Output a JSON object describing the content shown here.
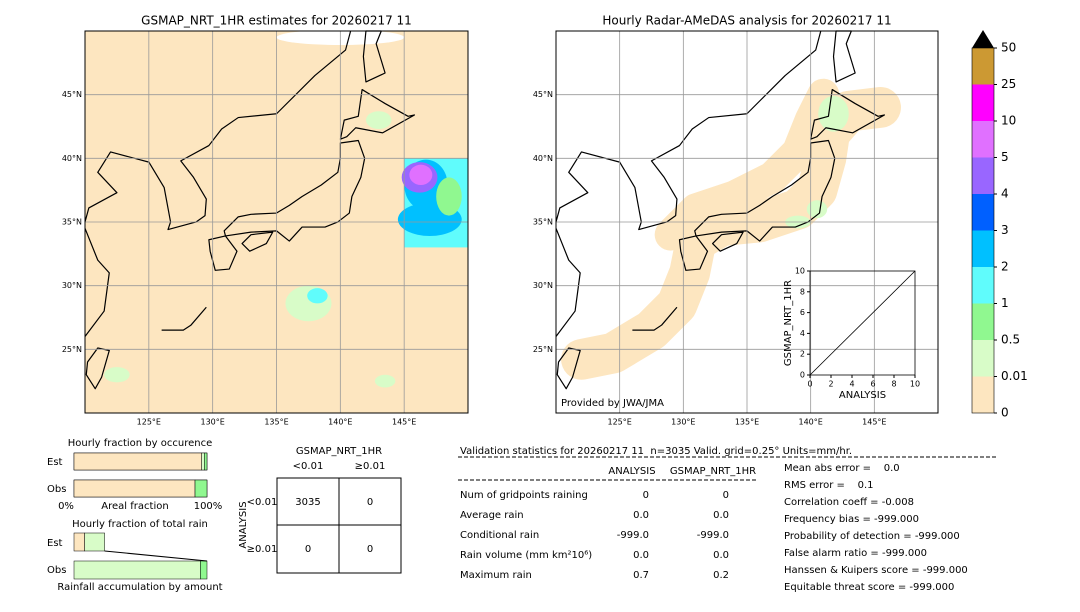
{
  "maps": [
    {
      "title": "GSMAP_NRT_1HR estimates for 20260217 11"
    },
    {
      "title": "Hourly Radar-AMeDAS analysis for 20260217 11",
      "credit": "Provided by JWA/JMA"
    }
  ],
  "map_axes": {
    "xlim": [
      120,
      150
    ],
    "ylim": [
      20,
      50
    ],
    "xticks": [
      {
        "value": 125,
        "label": "125°E"
      },
      {
        "value": 130,
        "label": "130°E"
      },
      {
        "value": 135,
        "label": "135°E"
      },
      {
        "value": 140,
        "label": "140°E"
      },
      {
        "value": 145,
        "label": "145°E"
      }
    ],
    "yticks": [
      {
        "value": 25,
        "label": "25°N"
      },
      {
        "value": 30,
        "label": "30°N"
      },
      {
        "value": 35,
        "label": "35°N"
      },
      {
        "value": 40,
        "label": "40°N"
      },
      {
        "value": 45,
        "label": "45°N"
      }
    ]
  },
  "colorbar": {
    "bounds": [
      0,
      0.01,
      0.5,
      1,
      2,
      3,
      4,
      5,
      10,
      25,
      50
    ],
    "colors": [
      "#fde6c0",
      "#d8fcc8",
      "#90f890",
      "#60fcfc",
      "#00c0ff",
      "#0060ff",
      "#9966ff",
      "#e070ff",
      "#ff00ff",
      "#cc9933"
    ],
    "extend_color": "#000000"
  },
  "scatter": {
    "xlabel": "ANALYSIS",
    "ylabel": "GSMAP_NRT_1HR",
    "xlim": [
      0,
      10
    ],
    "ylim": [
      0,
      10
    ],
    "xticks": [
      0,
      2,
      4,
      6,
      8,
      10
    ],
    "yticks": [
      0,
      2,
      4,
      6,
      8,
      10
    ]
  },
  "occurrence": {
    "title": "Hourly fraction by occurence",
    "rows": [
      "Est",
      "Obs"
    ],
    "xticks": [
      "0%",
      "100%"
    ],
    "xlabel": "Areal fraction",
    "colors": [
      "#fde6c0",
      "#d8fcc8",
      "#90f890"
    ],
    "est": [
      0.96,
      0.02,
      0.02
    ],
    "obs": [
      0.91,
      0,
      0.09
    ]
  },
  "total_rain": {
    "title": "Hourly fraction of total rain",
    "rows": [
      "Est",
      "Obs"
    ],
    "footer": "Rainfall accumulation by amount",
    "colors": [
      "#fde6c0",
      "#d8fcc8",
      "#90f890"
    ],
    "est": [
      0.08,
      0.15,
      0
    ],
    "obs": [
      0,
      0.95,
      0.05
    ]
  },
  "contingency": {
    "header": "GSMAP_NRT_1HR",
    "columns": [
      "<0.01",
      "≥0.01"
    ],
    "row_header": "ANALYSIS",
    "rows": [
      "<0.01",
      "≥0.01"
    ],
    "cells": [
      [
        "3035",
        "0"
      ],
      [
        "0",
        "0"
      ]
    ]
  },
  "validation": {
    "title": "Validation statistics for 20260217 11  n=3035 Valid. grid=0.25° Units=mm/hr.",
    "columns": [
      "ANALYSIS",
      "GSMAP_NRT_1HR"
    ],
    "rows": [
      [
        "Num of gridpoints raining",
        "0",
        "0"
      ],
      [
        "Average rain",
        "0.0",
        "0.0"
      ],
      [
        "Conditional rain",
        "-999.0",
        "-999.0"
      ],
      [
        "Rain volume (mm km²10⁶)",
        "0.0",
        "0.0"
      ],
      [
        "Maximum rain",
        "0.7",
        "0.2"
      ]
    ],
    "scores": [
      "Mean abs error =    0.0",
      "RMS error =    0.1",
      "Correlation coeff = -0.008",
      "Frequency bias = -999.000",
      "Probability of detection = -999.000",
      "False alarm ratio = -999.000",
      "Hanssen & Kuipers score = -999.000",
      "Equitable threat score = -999.000"
    ]
  }
}
